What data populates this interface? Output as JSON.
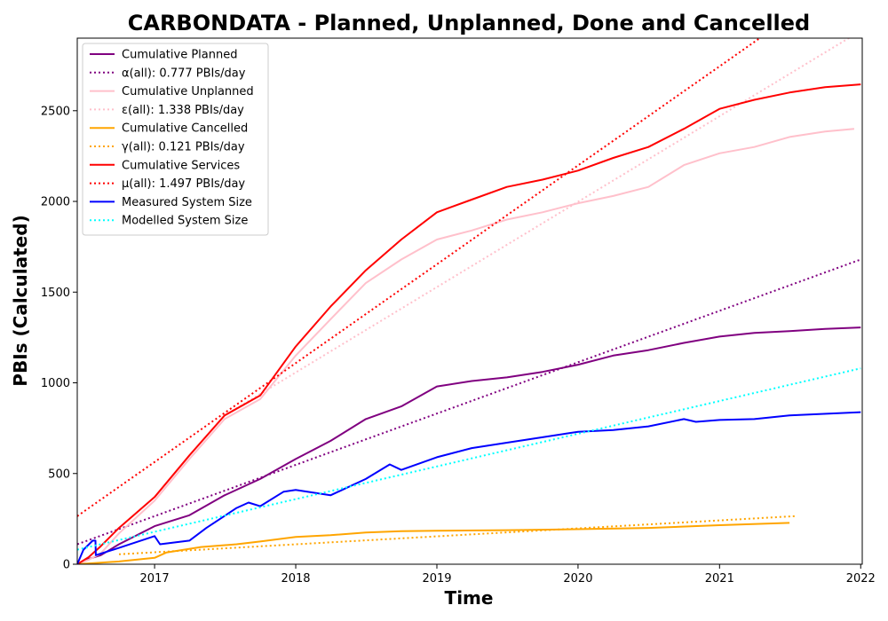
{
  "chart_data": {
    "type": "line",
    "title": "CARBONDATA - Planned, Unplanned, Done  and Cancelled",
    "xlabel": "Time",
    "ylabel": "PBIs (Calculated)",
    "xlim": [
      "2016-06-15",
      "2022-01-05"
    ],
    "ylim": [
      0,
      2900
    ],
    "x_ticks": [
      "2017",
      "2018",
      "2019",
      "2020",
      "2021",
      "2022"
    ],
    "y_ticks": [
      0,
      500,
      1000,
      1500,
      2000,
      2500
    ],
    "grid": false,
    "legend_position": "top-left",
    "series": [
      {
        "name": "Cumulative Planned",
        "color": "#800080",
        "style": "solid",
        "points": [
          [
            "2016-06-15",
            0
          ],
          [
            "2016-07-15",
            30
          ],
          [
            "2016-08-15",
            50
          ],
          [
            "2016-10-01",
            110
          ],
          [
            "2017-01-01",
            210
          ],
          [
            "2017-04-01",
            270
          ],
          [
            "2017-07-01",
            380
          ],
          [
            "2017-10-01",
            470
          ],
          [
            "2018-01-01",
            580
          ],
          [
            "2018-04-01",
            680
          ],
          [
            "2018-07-01",
            800
          ],
          [
            "2018-10-01",
            870
          ],
          [
            "2019-01-01",
            980
          ],
          [
            "2019-04-01",
            1010
          ],
          [
            "2019-07-01",
            1030
          ],
          [
            "2019-10-01",
            1060
          ],
          [
            "2020-01-01",
            1100
          ],
          [
            "2020-04-01",
            1150
          ],
          [
            "2020-07-01",
            1180
          ],
          [
            "2020-10-01",
            1220
          ],
          [
            "2021-01-01",
            1255
          ],
          [
            "2021-04-01",
            1275
          ],
          [
            "2021-07-01",
            1285
          ],
          [
            "2021-10-01",
            1297
          ],
          [
            "2022-01-01",
            1305
          ]
        ]
      },
      {
        "name": "α(all): 0.777 PBIs/day",
        "color": "#800080",
        "style": "dotted",
        "points": [
          [
            "2016-06-15",
            110
          ],
          [
            "2022-01-01",
            1680
          ]
        ]
      },
      {
        "name": "Cumulative Unplanned",
        "color": "#ffc0cb",
        "style": "solid",
        "points": [
          [
            "2016-06-15",
            0
          ],
          [
            "2016-07-15",
            25
          ],
          [
            "2016-08-15",
            60
          ],
          [
            "2016-10-01",
            170
          ],
          [
            "2017-01-01",
            350
          ],
          [
            "2017-04-01",
            580
          ],
          [
            "2017-07-01",
            800
          ],
          [
            "2017-10-01",
            910
          ],
          [
            "2018-01-01",
            1150
          ],
          [
            "2018-04-01",
            1350
          ],
          [
            "2018-07-01",
            1550
          ],
          [
            "2018-10-01",
            1680
          ],
          [
            "2019-01-01",
            1790
          ],
          [
            "2019-04-01",
            1840
          ],
          [
            "2019-07-01",
            1900
          ],
          [
            "2019-10-01",
            1940
          ],
          [
            "2020-01-01",
            1990
          ],
          [
            "2020-04-01",
            2030
          ],
          [
            "2020-07-01",
            2080
          ],
          [
            "2020-10-01",
            2200
          ],
          [
            "2021-01-01",
            2265
          ],
          [
            "2021-04-01",
            2300
          ],
          [
            "2021-07-01",
            2355
          ],
          [
            "2021-10-01",
            2385
          ],
          [
            "2021-12-15",
            2400
          ]
        ]
      },
      {
        "name": "ε(all): 1.338 PBIs/day",
        "color": "#ffc0cb",
        "style": "dotted",
        "points": [
          [
            "2017-07-01",
            820
          ],
          [
            "2022-01-01",
            2940
          ]
        ]
      },
      {
        "name": "Cumulative Cancelled",
        "color": "#ffa500",
        "style": "solid",
        "points": [
          [
            "2016-06-15",
            0
          ],
          [
            "2016-10-01",
            15
          ],
          [
            "2017-01-01",
            35
          ],
          [
            "2017-02-01",
            65
          ],
          [
            "2017-05-01",
            95
          ],
          [
            "2017-08-01",
            110
          ],
          [
            "2017-10-01",
            125
          ],
          [
            "2018-01-01",
            150
          ],
          [
            "2018-04-01",
            160
          ],
          [
            "2018-07-01",
            175
          ],
          [
            "2018-10-01",
            182
          ],
          [
            "2019-01-01",
            185
          ],
          [
            "2019-07-01",
            188
          ],
          [
            "2020-01-01",
            193
          ],
          [
            "2020-07-01",
            200
          ],
          [
            "2021-01-01",
            215
          ],
          [
            "2021-07-01",
            228
          ]
        ]
      },
      {
        "name": "γ(all): 0.121 PBIs/day",
        "color": "#ffa500",
        "style": "dotted",
        "points": [
          [
            "2016-10-01",
            55
          ],
          [
            "2021-07-15",
            265
          ]
        ]
      },
      {
        "name": "Cumulative Services",
        "color": "#ff0000",
        "style": "solid",
        "points": [
          [
            "2016-06-15",
            0
          ],
          [
            "2016-07-15",
            40
          ],
          [
            "2016-08-15",
            100
          ],
          [
            "2016-10-01",
            200
          ],
          [
            "2017-01-01",
            370
          ],
          [
            "2017-04-01",
            600
          ],
          [
            "2017-07-01",
            820
          ],
          [
            "2017-10-01",
            930
          ],
          [
            "2018-01-01",
            1200
          ],
          [
            "2018-04-01",
            1420
          ],
          [
            "2018-07-01",
            1620
          ],
          [
            "2018-10-01",
            1790
          ],
          [
            "2019-01-01",
            1940
          ],
          [
            "2019-04-01",
            2010
          ],
          [
            "2019-07-01",
            2080
          ],
          [
            "2019-10-01",
            2120
          ],
          [
            "2020-01-01",
            2170
          ],
          [
            "2020-04-01",
            2240
          ],
          [
            "2020-07-01",
            2300
          ],
          [
            "2020-10-01",
            2400
          ],
          [
            "2021-01-01",
            2510
          ],
          [
            "2021-04-01",
            2560
          ],
          [
            "2021-07-01",
            2600
          ],
          [
            "2021-10-01",
            2630
          ],
          [
            "2022-01-01",
            2645
          ]
        ]
      },
      {
        "name": "μ(all): 1.497 PBIs/day",
        "color": "#ff0000",
        "style": "dotted",
        "points": [
          [
            "2016-06-15",
            265
          ],
          [
            "2021-04-15",
            2900
          ]
        ]
      },
      {
        "name": "Measured System Size",
        "color": "#0000ff",
        "style": "solid",
        "points": [
          [
            "2016-06-15",
            0
          ],
          [
            "2016-07-01",
            80
          ],
          [
            "2016-07-25",
            130
          ],
          [
            "2016-08-01",
            130
          ],
          [
            "2016-08-02",
            50
          ],
          [
            "2016-10-01",
            90
          ],
          [
            "2017-01-01",
            155
          ],
          [
            "2017-01-15",
            110
          ],
          [
            "2017-04-01",
            130
          ],
          [
            "2017-05-15",
            200
          ],
          [
            "2017-08-01",
            310
          ],
          [
            "2017-09-01",
            340
          ],
          [
            "2017-10-01",
            320
          ],
          [
            "2017-12-01",
            400
          ],
          [
            "2018-01-01",
            410
          ],
          [
            "2018-04-01",
            380
          ],
          [
            "2018-07-01",
            470
          ],
          [
            "2018-09-01",
            550
          ],
          [
            "2018-10-01",
            520
          ],
          [
            "2019-01-01",
            590
          ],
          [
            "2019-04-01",
            640
          ],
          [
            "2019-07-01",
            670
          ],
          [
            "2019-10-01",
            700
          ],
          [
            "2020-01-01",
            730
          ],
          [
            "2020-04-01",
            740
          ],
          [
            "2020-07-01",
            760
          ],
          [
            "2020-10-01",
            800
          ],
          [
            "2020-11-01",
            785
          ],
          [
            "2021-01-01",
            795
          ],
          [
            "2021-04-01",
            800
          ],
          [
            "2021-07-01",
            820
          ],
          [
            "2022-01-01",
            838
          ]
        ]
      },
      {
        "name": "Modelled System Size",
        "color": "#00ffff",
        "style": "dotted",
        "points": [
          [
            "2016-06-15",
            80
          ],
          [
            "2022-01-01",
            1080
          ]
        ]
      }
    ]
  }
}
